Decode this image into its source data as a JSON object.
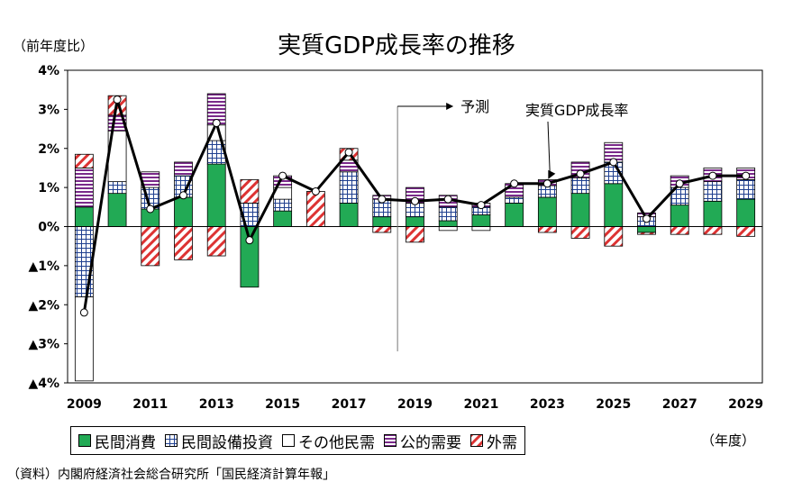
{
  "chart_data": {
    "type": "bar",
    "title": "実質GDP成長率の推移",
    "ylabel": "（前年度比）",
    "xunit_label": "（年度）",
    "source": "（資料）内閣府経済社会総合研究所「国民経済計算年報」",
    "forecast_label": "予測",
    "line_label": "実質GDP成長率",
    "ylim": [
      -4,
      4
    ],
    "yticks": [
      {
        "value": 4,
        "label": "4%"
      },
      {
        "value": 3,
        "label": "3%"
      },
      {
        "value": 2,
        "label": "2%"
      },
      {
        "value": 1,
        "label": "1%"
      },
      {
        "value": 0,
        "label": "0%"
      },
      {
        "value": -1,
        "label": "▲1%"
      },
      {
        "value": -2,
        "label": "▲2%"
      },
      {
        "value": -3,
        "label": "▲3%"
      },
      {
        "value": -4,
        "label": "▲4%"
      }
    ],
    "categories": [
      "2009",
      "2010",
      "2011",
      "2012",
      "2013",
      "2014",
      "2015",
      "2016",
      "2017",
      "2018",
      "2019",
      "2020",
      "2021",
      "2022",
      "2023",
      "2024",
      "2025",
      "2026",
      "2027",
      "2028",
      "2029"
    ],
    "xtick_labels": [
      "2009",
      "2011",
      "2013",
      "2015",
      "2017",
      "2019",
      "2021",
      "2023",
      "2025",
      "2027",
      "2029"
    ],
    "forecast_start": "2019",
    "series": [
      {
        "name": "民間消費",
        "key": "consumption",
        "color": "#22aa55",
        "values": [
          0.5,
          0.85,
          0.45,
          0.75,
          1.6,
          -1.55,
          0.4,
          0.0,
          0.6,
          0.25,
          0.25,
          0.15,
          0.3,
          0.6,
          0.75,
          0.85,
          1.1,
          -0.15,
          0.55,
          0.65,
          0.7
        ]
      },
      {
        "name": "民間設備投資",
        "key": "investment",
        "color": "#1f3f8f",
        "values": [
          -1.8,
          0.3,
          0.55,
          0.55,
          0.6,
          0.6,
          0.3,
          0.0,
          0.8,
          0.45,
          0.35,
          0.35,
          0.2,
          0.15,
          0.3,
          0.4,
          0.55,
          0.25,
          0.45,
          0.5,
          0.5
        ]
      },
      {
        "name": "その他民需",
        "key": "other",
        "color": "#ffffff",
        "values": [
          -2.15,
          1.3,
          0.0,
          0.0,
          0.4,
          0.0,
          0.3,
          0.0,
          0.0,
          0.0,
          0.0,
          -0.1,
          -0.1,
          0.0,
          0.0,
          0.0,
          0.0,
          0.0,
          0.0,
          0.0,
          0.0
        ]
      },
      {
        "name": "公的需要",
        "key": "public",
        "color": "#7a2a8a",
        "values": [
          1.0,
          0.4,
          0.4,
          0.35,
          0.8,
          0.0,
          0.3,
          0.0,
          0.3,
          0.1,
          0.4,
          0.3,
          0.1,
          0.35,
          0.15,
          0.4,
          0.5,
          0.1,
          0.3,
          0.35,
          0.3
        ]
      },
      {
        "name": "外需",
        "key": "external",
        "color": "#dd3333",
        "values": [
          0.35,
          0.5,
          -1.0,
          -0.85,
          -0.75,
          0.6,
          0.0,
          0.9,
          0.3,
          -0.15,
          -0.4,
          0.0,
          0.0,
          0.0,
          -0.15,
          -0.3,
          -0.5,
          -0.05,
          -0.2,
          -0.2,
          -0.25
        ]
      }
    ],
    "gdp_line": {
      "name": "実質GDP成長率",
      "values": [
        -2.2,
        3.25,
        0.45,
        0.8,
        2.65,
        -0.35,
        1.3,
        0.9,
        1.9,
        0.7,
        0.65,
        0.7,
        0.55,
        1.1,
        1.1,
        1.35,
        1.65,
        0.2,
        1.1,
        1.3,
        1.3
      ]
    }
  }
}
